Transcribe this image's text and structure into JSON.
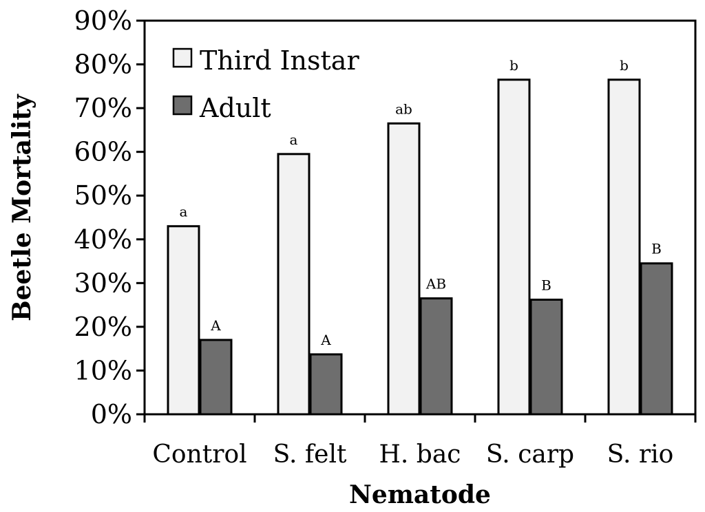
{
  "chart_data": {
    "type": "bar",
    "title": "",
    "xlabel": "Nematode",
    "ylabel": "Beetle Mortality",
    "ylim": [
      0,
      0.9
    ],
    "yticks": [
      0,
      0.1,
      0.2,
      0.3,
      0.4,
      0.5,
      0.6,
      0.7,
      0.8,
      0.9
    ],
    "ytick_labels": [
      "0%",
      "10%",
      "20%",
      "30%",
      "40%",
      "50%",
      "60%",
      "70%",
      "80%",
      "90%"
    ],
    "categories": [
      "Control",
      "S. felt",
      "H. bac",
      "S. carp",
      "S. rio"
    ],
    "legend_position": "top-left",
    "grid": false,
    "series": [
      {
        "name": "Third Instar",
        "color": "#f2f2f2",
        "values": [
          0.43,
          0.595,
          0.665,
          0.765,
          0.765
        ],
        "labels": [
          "a",
          "a",
          "ab",
          "b",
          "b"
        ]
      },
      {
        "name": "Adult",
        "color": "#6e6e6e",
        "values": [
          0.17,
          0.137,
          0.265,
          0.262,
          0.345
        ],
        "labels": [
          "A",
          "A",
          "AB",
          "B",
          "B"
        ]
      }
    ]
  }
}
